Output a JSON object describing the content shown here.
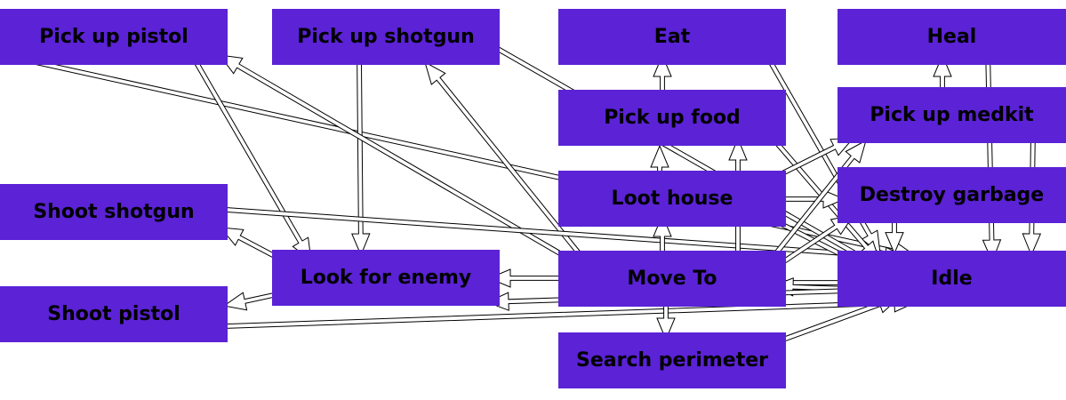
{
  "colors": {
    "node_fill": "#5b22d6",
    "text": "#000000",
    "arrow_fill": "#ffffff",
    "arrow_stroke": "#000000"
  },
  "nodes": {
    "pickup_pistol": "Pick up pistol",
    "pickup_shotgun": "Pick up shotgun",
    "eat": "Eat",
    "heal": "Heal",
    "pickup_food": "Pick up food",
    "pickup_medkit": "Pick up medkit",
    "loot_house": "Loot house",
    "destroy_garbage": "Destroy garbage",
    "shoot_shotgun": "Shoot shotgun",
    "look_for_enemy": "Look for enemy",
    "move_to": "Move To",
    "idle": "Idle",
    "shoot_pistol": "Shoot pistol",
    "search_perimeter": "Search perimeter"
  },
  "edges": [
    {
      "from": "pickup_pistol",
      "to": "idle"
    },
    {
      "from": "pickup_pistol",
      "to": "look_for_enemy"
    },
    {
      "from": "pickup_shotgun",
      "to": "look_for_enemy"
    },
    {
      "from": "pickup_shotgun",
      "to": "idle"
    },
    {
      "from": "move_to",
      "to": "pickup_pistol"
    },
    {
      "from": "move_to",
      "to": "pickup_shotgun"
    },
    {
      "from": "move_to",
      "to": "look_for_enemy"
    },
    {
      "from": "look_for_enemy",
      "to": "shoot_shotgun"
    },
    {
      "from": "look_for_enemy",
      "to": "shoot_pistol"
    },
    {
      "from": "shoot_shotgun",
      "to": "idle"
    },
    {
      "from": "shoot_pistol",
      "to": "idle"
    },
    {
      "from": "pickup_food",
      "to": "eat"
    },
    {
      "from": "loot_house",
      "to": "pickup_food"
    },
    {
      "from": "move_to",
      "to": "loot_house"
    },
    {
      "from": "move_to",
      "to": "pickup_food"
    },
    {
      "from": "eat",
      "to": "idle"
    },
    {
      "from": "pickup_food",
      "to": "idle"
    },
    {
      "from": "loot_house",
      "to": "pickup_medkit"
    },
    {
      "from": "loot_house",
      "to": "destroy_garbage"
    },
    {
      "from": "loot_house",
      "to": "idle"
    },
    {
      "from": "pickup_medkit",
      "to": "heal"
    },
    {
      "from": "heal",
      "to": "idle"
    },
    {
      "from": "pickup_medkit",
      "to": "idle"
    },
    {
      "from": "destroy_garbage",
      "to": "idle"
    },
    {
      "from": "move_to",
      "to": "pickup_medkit"
    },
    {
      "from": "move_to",
      "to": "destroy_garbage"
    },
    {
      "from": "move_to",
      "to": "idle"
    },
    {
      "from": "idle",
      "to": "move_to"
    },
    {
      "from": "idle",
      "to": "look_for_enemy"
    },
    {
      "from": "move_to",
      "to": "search_perimeter"
    },
    {
      "from": "search_perimeter",
      "to": "idle"
    }
  ]
}
